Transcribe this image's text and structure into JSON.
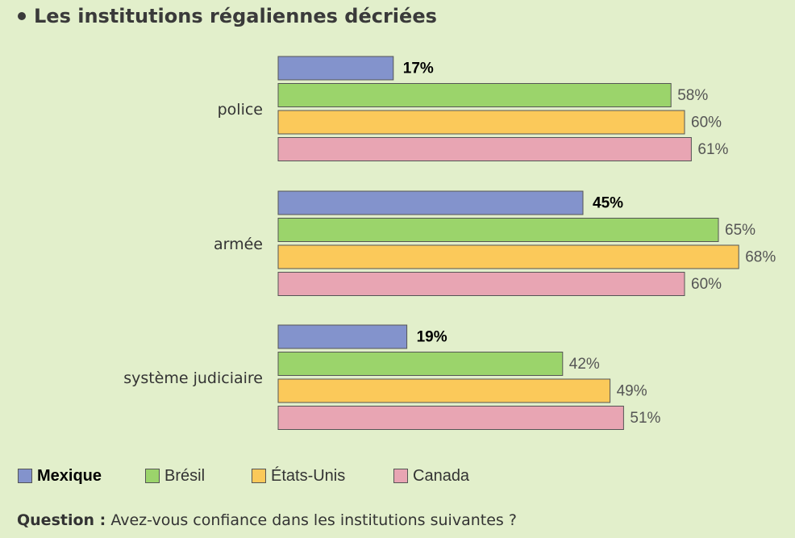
{
  "title": "Les institutions régaliennes décriées",
  "question": {
    "label": "Question :",
    "text": "Avez-vous confiance dans les institutions suivantes ?"
  },
  "chart_data": {
    "type": "bar",
    "orientation": "horizontal",
    "title": "Les institutions régaliennes décriées",
    "categories": [
      "police",
      "armée",
      "système judiciaire"
    ],
    "series": [
      {
        "name": "Mexique",
        "color": "#8393cc",
        "values": [
          17,
          45,
          19
        ],
        "labels": [
          "17%",
          "45%",
          "19%"
        ],
        "emphasis": true
      },
      {
        "name": "Brésil",
        "color": "#9bd46b",
        "values": [
          58,
          65,
          42
        ],
        "labels": [
          "58%",
          "65%",
          "42%"
        ]
      },
      {
        "name": "États-Unis",
        "color": "#fbc95a",
        "values": [
          60,
          68,
          49
        ],
        "labels": [
          "60%",
          "68%",
          "49%"
        ]
      },
      {
        "name": "Canada",
        "color": "#e8a5b3",
        "values": [
          61,
          60,
          51
        ],
        "labels": [
          "61%",
          "60%",
          "51%"
        ]
      }
    ],
    "unit": "%",
    "legend_position": "bottom",
    "grid": false
  }
}
